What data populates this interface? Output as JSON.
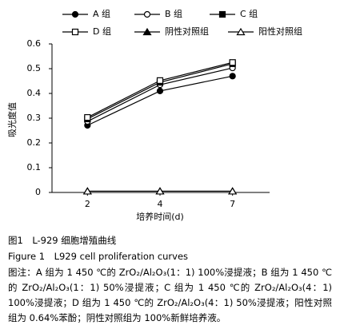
{
  "chart_data": {
    "type": "line",
    "categories": [
      "2",
      "4",
      "7"
    ],
    "series": [
      {
        "name": "A 组",
        "color": "#000000",
        "marker": "circle-filled",
        "values": [
          0.271,
          0.41,
          0.47
        ]
      },
      {
        "name": "B 组",
        "color": "#000000",
        "marker": "circle-open",
        "values": [
          0.287,
          0.435,
          0.503
        ]
      },
      {
        "name": "C 组",
        "color": "#000000",
        "marker": "square-filled",
        "values": [
          0.297,
          0.445,
          0.52
        ]
      },
      {
        "name": "D 组",
        "color": "#000000",
        "marker": "square-open",
        "values": [
          0.303,
          0.452,
          0.525
        ]
      },
      {
        "name": "阴性对照组",
        "color": "#000000",
        "marker": "triangle-filled",
        "values": [
          0.005,
          0.005,
          0.005
        ]
      },
      {
        "name": "阳性对照组",
        "color": "#000000",
        "marker": "triangle-open",
        "values": [
          0.005,
          0.005,
          0.005
        ]
      }
    ],
    "ylabel": "吸光度值",
    "xlabel": "培养时间(d)",
    "ylim": [
      0,
      0.6
    ],
    "yticks": [
      0,
      0.1,
      0.2,
      0.3,
      0.4,
      0.5,
      0.6
    ],
    "grid": false
  },
  "caption": {
    "title_cn": "图1　L-929 细胞增殖曲线",
    "title_en": "Figure 1　L929 cell proliferation curves",
    "note": "图注：A 组为 1 450 ℃的 ZrO₂/Al₂O₃(1：1) 100%浸提液；B 组为 1 450 ℃的 ZrO₂/Al₂O₃(1：1) 50%浸提液；C 组为 1 450 ℃的 ZrO₂/Al₂O₃(4：1) 100%浸提液；D 组为 1 450 ℃的 ZrO₂/Al₂O₃(4：1) 50%浸提液；阳性对照组为 0.64%苯酚；阴性对照组为 100%新鲜培养液。"
  }
}
